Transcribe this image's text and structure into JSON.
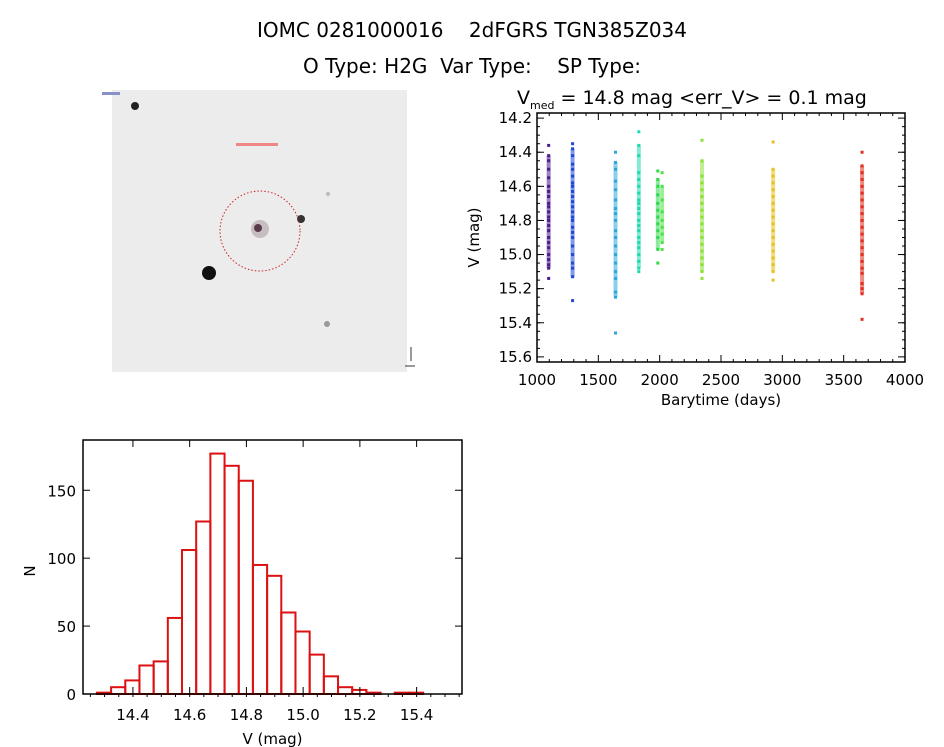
{
  "header": {
    "line1": "IOMC 0281000016    2dFGRS TGN385Z034",
    "line2": "O Type: H2G  Var Type:    SP Type:"
  },
  "chart_data": [
    {
      "type": "scatter",
      "title_main": "V",
      "title_sub": "med",
      "title_rest": " = 14.8 mag <err_V> = 0.1 mag",
      "xlabel": "Barytime (days)",
      "ylabel": "V (mag)",
      "xlim": [
        1000,
        4000
      ],
      "ylim": [
        15.63,
        14.17
      ],
      "y_inverted": true,
      "xticks": [
        1000,
        1500,
        2000,
        2500,
        3000,
        3500,
        4000
      ],
      "yticks": [
        14.2,
        14.4,
        14.6,
        14.8,
        15.0,
        15.2,
        15.4,
        15.6
      ],
      "ytick_labels": [
        "14.2",
        "14.4",
        "14.6",
        "14.8",
        "15.0",
        "15.2",
        "15.4",
        "15.6"
      ],
      "clusters": [
        {
          "x": 1095,
          "color": "#4b1a8c",
          "values": [
            14.36,
            14.42,
            14.45,
            14.5,
            14.55,
            14.6,
            14.63,
            14.66,
            14.7,
            14.72,
            14.75,
            14.78,
            14.8,
            14.83,
            14.86,
            14.9,
            14.93,
            14.96,
            15.0,
            15.03,
            15.06,
            15.08,
            15.14
          ]
        },
        {
          "x": 1290,
          "color": "#1f48d6",
          "values": [
            14.35,
            14.38,
            14.42,
            14.47,
            14.5,
            14.54,
            14.58,
            14.6,
            14.63,
            14.66,
            14.69,
            14.72,
            14.75,
            14.78,
            14.8,
            14.84,
            14.87,
            14.9,
            14.95,
            15.0,
            15.05,
            15.08,
            15.13,
            15.27
          ]
        },
        {
          "x": 1640,
          "color": "#2aa8dc",
          "values": [
            14.4,
            14.46,
            14.5,
            14.57,
            14.62,
            14.68,
            14.73,
            14.76,
            14.8,
            14.86,
            14.9,
            14.95,
            15.0,
            15.05,
            15.1,
            15.14,
            15.22,
            15.25,
            15.46
          ]
        },
        {
          "x": 1830,
          "color": "#1fd8b0",
          "values": [
            14.28,
            14.36,
            14.42,
            14.52,
            14.56,
            14.6,
            14.64,
            14.68,
            14.7,
            14.73,
            14.76,
            14.8,
            14.83,
            14.86,
            14.9,
            14.93,
            14.96,
            15.0,
            15.04,
            15.08,
            15.1
          ]
        },
        {
          "x": 1985,
          "color": "#2fd84a",
          "values": [
            14.51,
            14.56,
            14.6,
            14.65,
            14.7,
            14.74,
            14.78,
            14.82,
            14.86,
            14.9,
            14.97,
            15.05
          ]
        },
        {
          "x": 2020,
          "color": "#4fe04a",
          "values": [
            14.52,
            14.6,
            14.68,
            14.75,
            14.8,
            14.84,
            14.88,
            14.93,
            14.97
          ]
        },
        {
          "x": 2345,
          "color": "#8ce03a",
          "values": [
            14.33,
            14.45,
            14.54,
            14.58,
            14.62,
            14.66,
            14.7,
            14.74,
            14.78,
            14.82,
            14.86,
            14.9,
            14.94,
            14.98,
            15.02,
            15.06,
            15.1,
            15.14
          ]
        },
        {
          "x": 2925,
          "color": "#e8c020",
          "values": [
            14.34,
            14.5,
            14.54,
            14.58,
            14.62,
            14.66,
            14.7,
            14.74,
            14.78,
            14.82,
            14.86,
            14.9,
            14.94,
            14.98,
            15.02,
            15.06,
            15.1,
            15.15
          ]
        },
        {
          "x": 3650,
          "color": "#e03020",
          "values": [
            14.4,
            14.48,
            14.52,
            14.56,
            14.6,
            14.64,
            14.68,
            14.72,
            14.76,
            14.8,
            14.84,
            14.88,
            14.92,
            14.96,
            15.0,
            15.04,
            15.08,
            15.11,
            15.17,
            15.2,
            15.23,
            15.38
          ]
        }
      ]
    },
    {
      "type": "bar",
      "subtype": "histogram",
      "xlabel": "V (mag)",
      "ylabel": "N",
      "xlim": [
        14.224,
        15.56
      ],
      "ylim": [
        0,
        187
      ],
      "bin_width": 0.05,
      "xticks": [
        14.4,
        14.6,
        14.8,
        15.0,
        15.2,
        15.4
      ],
      "xtick_labels": [
        "14.4",
        "14.6",
        "14.8",
        "15.0",
        "15.2",
        "15.4"
      ],
      "yticks": [
        0,
        50,
        100,
        150
      ],
      "ytick_labels": [
        "0",
        "50",
        "100",
        "150"
      ],
      "bin_starts": [
        14.273,
        14.323,
        14.373,
        14.423,
        14.473,
        14.523,
        14.573,
        14.623,
        14.673,
        14.723,
        14.773,
        14.823,
        14.873,
        14.923,
        14.973,
        15.023,
        15.073,
        15.123,
        15.173,
        15.223,
        15.273,
        15.323,
        15.373
      ],
      "values": [
        1,
        5,
        10,
        21,
        24,
        56,
        106,
        127,
        177,
        168,
        157,
        95,
        87,
        60,
        46,
        29,
        13,
        5,
        3,
        1,
        0,
        1,
        1
      ],
      "color": "#dd1111"
    }
  ]
}
